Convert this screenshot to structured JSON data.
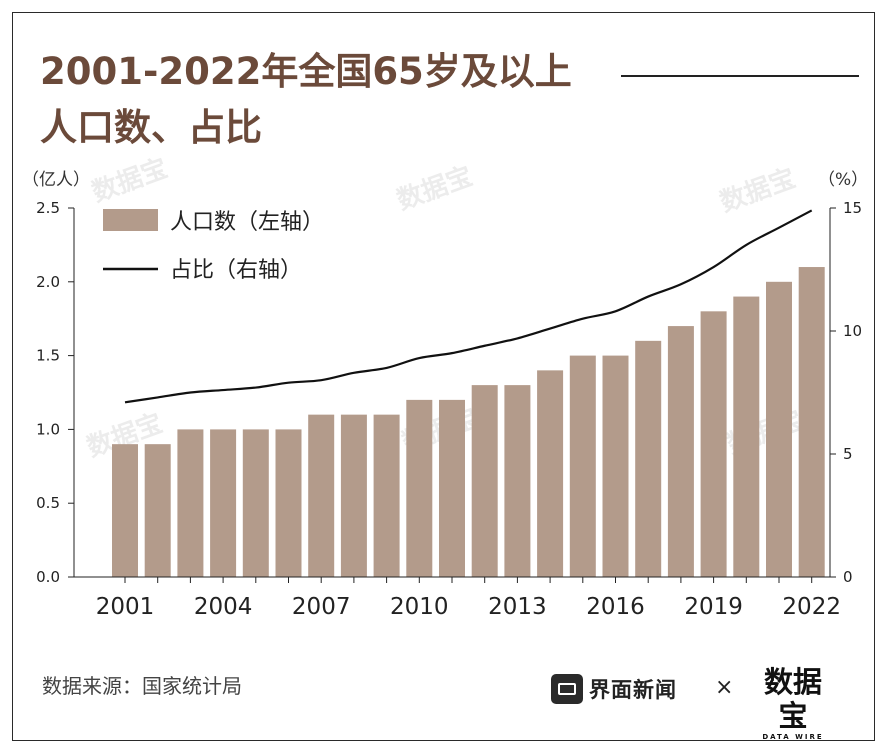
{
  "title_line1": "2001-2022年全国65岁及以上",
  "title_line2": "人口数、占比",
  "left_unit": "（亿人）",
  "right_unit": "（%）",
  "source": "数据来源：国家统计局",
  "brand": {
    "name": "界面新闻",
    "separator": "×",
    "partner": "数据宝",
    "partner_sub": "DATA WIRE"
  },
  "watermark": {
    "text": "数据宝",
    "sub": "DATA WIRE"
  },
  "colors": {
    "bar": "#b39b8b",
    "line": "#111111",
    "title": "#6b4a3a"
  },
  "chart_data": {
    "type": "bar",
    "x": [
      2001,
      2002,
      2003,
      2004,
      2005,
      2006,
      2007,
      2008,
      2009,
      2010,
      2011,
      2012,
      2013,
      2014,
      2015,
      2016,
      2017,
      2018,
      2019,
      2020,
      2021,
      2022
    ],
    "x_tick_labels": [
      "2001",
      "2004",
      "2007",
      "2010",
      "2013",
      "2016",
      "2019",
      "2022"
    ],
    "series": [
      {
        "name": "人口数（左轴）",
        "type": "bar",
        "axis": "left",
        "values": [
          0.9,
          0.9,
          1.0,
          1.0,
          1.0,
          1.0,
          1.1,
          1.1,
          1.1,
          1.2,
          1.2,
          1.3,
          1.3,
          1.4,
          1.5,
          1.5,
          1.6,
          1.7,
          1.8,
          1.9,
          2.0,
          2.1
        ]
      },
      {
        "name": "占比（右轴）",
        "type": "line",
        "axis": "right",
        "values": [
          7.1,
          7.3,
          7.5,
          7.6,
          7.7,
          7.9,
          8.0,
          8.3,
          8.5,
          8.9,
          9.1,
          9.4,
          9.7,
          10.1,
          10.5,
          10.8,
          11.4,
          11.9,
          12.6,
          13.5,
          14.2,
          14.9
        ]
      }
    ],
    "left_axis": {
      "ylim": [
        0,
        2.5
      ],
      "ticks": [
        "0.0",
        "0.5",
        "1.0",
        "1.5",
        "2.0",
        "2.5"
      ]
    },
    "right_axis": {
      "ylim": [
        0,
        15
      ],
      "ticks": [
        "0",
        "5",
        "10",
        "15"
      ]
    },
    "legend_placement": "top-left",
    "grid": false
  }
}
